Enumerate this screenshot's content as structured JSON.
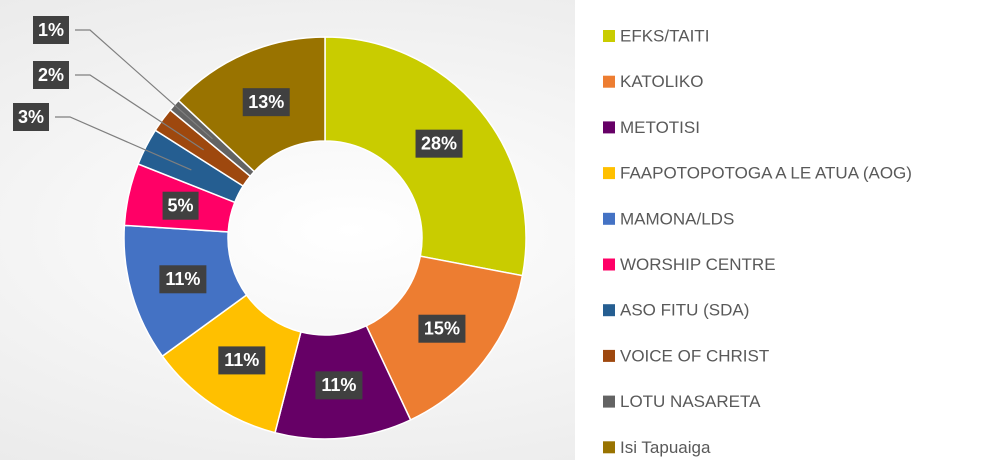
{
  "chart_data": {
    "type": "donut",
    "categories": [
      "EFKS/TAITI",
      "KATOLIKO",
      "METOTISI",
      "FAAPOTOPOTOGA A LE ATUA (AOG)",
      "MAMONA/LDS",
      "WORSHIP CENTRE",
      "ASO FITU (SDA)",
      "VOICE OF CHRIST",
      "LOTU NASARETA",
      "Isi Tapuaiga"
    ],
    "values": [
      28,
      15,
      11,
      11,
      11,
      5,
      3,
      2,
      1,
      13
    ],
    "value_labels": [
      "28%",
      "15%",
      "11%",
      "11%",
      "11%",
      "5%",
      "3%",
      "2%",
      "1%",
      "13%"
    ],
    "colors": [
      "#c9cc00",
      "#ed7d31",
      "#660066",
      "#ffc000",
      "#4472c4",
      "#ff0066",
      "#255e91",
      "#9e480e",
      "#636363",
      "#997300"
    ],
    "legend": "right"
  }
}
